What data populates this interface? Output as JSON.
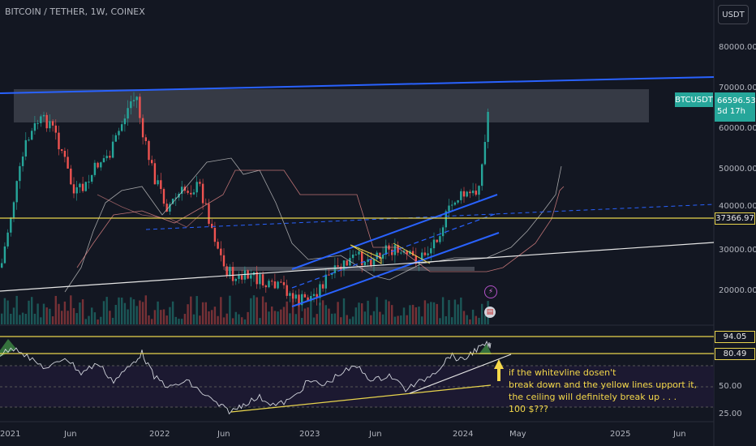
{
  "header": {
    "title": "BITCOIN / TETHER, 1W, COINEX",
    "currency_button": "USDT"
  },
  "price_axis": {
    "labels": [
      "80000.00",
      "70000.00",
      "60000.00",
      "50000.00",
      "40000.00",
      "30000.00",
      "20000.00"
    ]
  },
  "time_axis": {
    "labels": [
      "2021",
      "Jun",
      "2022",
      "Jun",
      "2023",
      "Jun",
      "2024",
      "May",
      "2025",
      "Jun"
    ]
  },
  "last_price": {
    "symbol": "BTCUSDT",
    "price": "66596.53",
    "countdown": "5d 17h"
  },
  "level_badge": "37366.97",
  "rsi": {
    "labels": [
      "94.05",
      "80.49",
      "50.00",
      "25.00"
    ]
  },
  "annotation": "if the whitevline dosen't\nbreak down and the yellow lines upport it,\nthe ceiling will definitely break up . . .\n100 $???",
  "icons": [
    "lightning-event-icon",
    "us-flag-event-icon"
  ],
  "colors": {
    "background": "#131722",
    "up": "#26a69a",
    "down": "#ef5350",
    "trendline_blue": "#2962ff",
    "level_yellow": "#e8d44d",
    "accent_teal": "#26a69a"
  }
}
